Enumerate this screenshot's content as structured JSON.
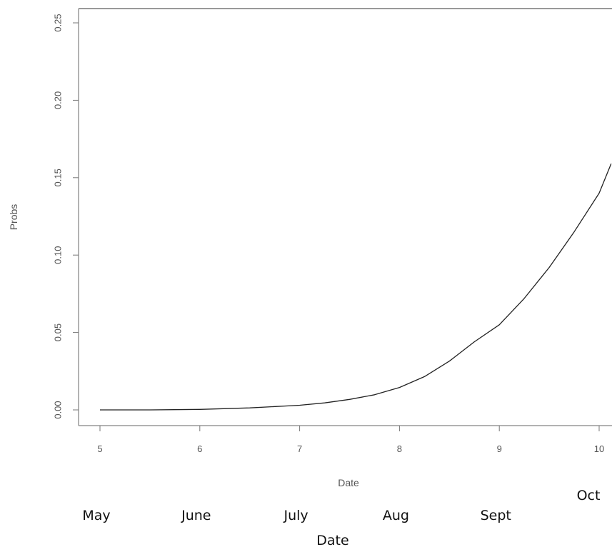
{
  "chart_data": {
    "type": "line",
    "title": "",
    "xlabel": "Date",
    "ylabel": "Probs",
    "xlim": [
      4.96,
      10.12
    ],
    "ylim": [
      -0.01,
      0.26
    ],
    "x_ticks": [
      5,
      6,
      7,
      8,
      9,
      10
    ],
    "x_tick_labels": [
      "5",
      "6",
      "7",
      "8",
      "9",
      "10"
    ],
    "y_ticks": [
      0.0,
      0.05,
      0.1,
      0.15,
      0.2,
      0.25
    ],
    "y_tick_labels": [
      "0.00",
      "0.05",
      "0.10",
      "0.15",
      "0.20",
      "0.25"
    ],
    "grid": false,
    "series": [
      {
        "color": "#222222",
        "x": [
          5.0,
          5.5,
          6.0,
          6.5,
          7.0,
          7.25,
          7.5,
          7.75,
          8.0,
          8.25,
          8.5,
          8.75,
          9.0,
          9.25,
          9.5,
          9.75,
          10.0,
          10.12
        ],
        "y": [
          0.0,
          0.0,
          0.0003,
          0.0013,
          0.003,
          0.0045,
          0.0068,
          0.0098,
          0.0145,
          0.0215,
          0.0315,
          0.044,
          0.055,
          0.072,
          0.092,
          0.115,
          0.14,
          0.159
        ]
      }
    ],
    "month_labels": [
      {
        "label": "May",
        "x": 5
      },
      {
        "label": "June",
        "x": 6
      },
      {
        "label": "July",
        "x": 7
      },
      {
        "label": "Aug",
        "x": 8
      },
      {
        "label": "Sept",
        "x": 9
      },
      {
        "label": "Oct",
        "x": 10
      }
    ],
    "secondary_xlabel": "Date"
  }
}
